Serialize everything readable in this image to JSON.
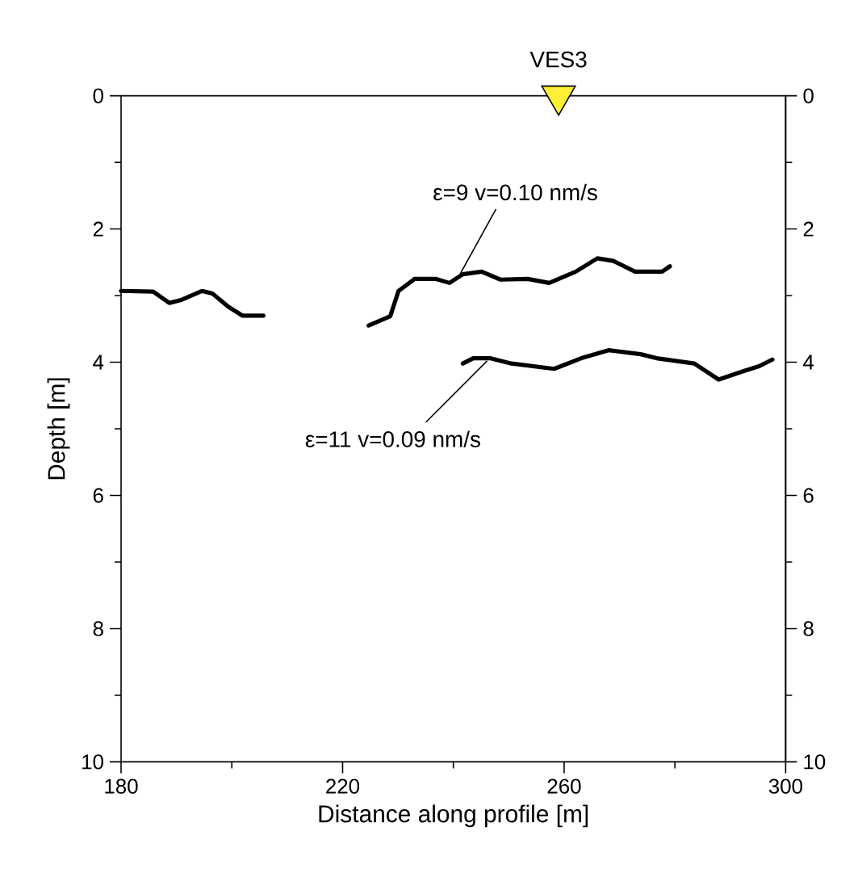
{
  "chart_data": {
    "type": "line",
    "xlabel": "Distance along profile [m]",
    "ylabel": "Depth [m]",
    "xlim": [
      180,
      300
    ],
    "ylim": [
      10,
      0
    ],
    "xticks": [
      180,
      {
        "value": 200,
        "label": null
      },
      220,
      {
        "value": 240,
        "label": null
      },
      260,
      {
        "value": 280,
        "label": null
      },
      300
    ],
    "yticks": [
      0,
      {
        "value": 1,
        "label": null
      },
      2,
      {
        "value": 3,
        "label": null
      },
      4,
      {
        "value": 5,
        "label": null
      },
      6,
      {
        "value": 7,
        "label": null
      },
      8,
      {
        "value": 9,
        "label": null
      },
      10
    ],
    "y2lim": [
      10,
      0
    ],
    "y2ticks": [
      0,
      {
        "value": 1,
        "label": null
      },
      2,
      {
        "value": 3,
        "label": null
      },
      4,
      {
        "value": 5,
        "label": null
      },
      6,
      {
        "value": 7,
        "label": null
      },
      8,
      {
        "value": 9,
        "label": null
      },
      10
    ],
    "line_style": "solid",
    "marker": "none",
    "series": [
      {
        "color": "#000000",
        "x": [
          180.0,
          185.8,
          188.7,
          190.7,
          194.6,
          196.5,
          199.4,
          201.9,
          205.7
        ],
        "values": [
          2.93,
          2.94,
          3.11,
          3.07,
          2.93,
          2.97,
          3.17,
          3.3,
          3.3
        ]
      },
      {
        "color": "#000000",
        "x": [
          224.7,
          228.6,
          230.1,
          233.0,
          236.9,
          239.3,
          241.7,
          245.1,
          248.5,
          253.4,
          257.3,
          262.1,
          266.0,
          268.9,
          272.8,
          277.7,
          279.1
        ],
        "values": [
          3.45,
          3.31,
          2.93,
          2.75,
          2.75,
          2.81,
          2.68,
          2.64,
          2.76,
          2.75,
          2.81,
          2.64,
          2.44,
          2.48,
          2.64,
          2.64,
          2.56
        ]
      },
      {
        "color": "#000000",
        "x": [
          241.7,
          243.6,
          246.6,
          250.5,
          258.2,
          263.1,
          268.0,
          273.8,
          276.7,
          283.5,
          287.9,
          292.2,
          295.2,
          297.6
        ],
        "values": [
          4.02,
          3.94,
          3.94,
          4.02,
          4.1,
          3.94,
          3.82,
          3.88,
          3.94,
          4.02,
          4.26,
          4.14,
          4.06,
          3.96
        ]
      },
      {
        "type": "scatter",
        "name": "VES3",
        "color": "#fff035",
        "marker": "triangle",
        "x": [
          259
        ],
        "values": [
          0
        ]
      }
    ],
    "annotations": [
      {
        "text": "ε=9 v=0.10 nm/s",
        "x": 241.2,
        "y": 2.68
      },
      {
        "text": "ε=11 v=0.09 nm/s",
        "x": 246.1,
        "y": 3.98
      }
    ]
  }
}
